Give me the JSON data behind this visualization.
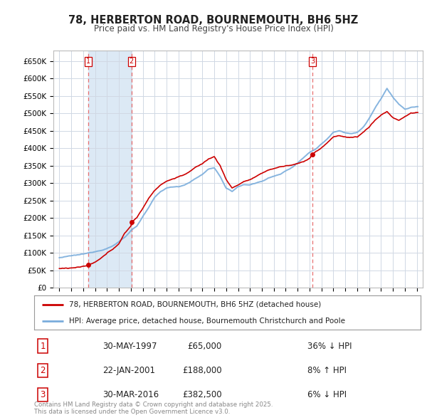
{
  "title": "78, HERBERTON ROAD, BOURNEMOUTH, BH6 5HZ",
  "subtitle": "Price paid vs. HM Land Registry's House Price Index (HPI)",
  "legend_line1": "78, HERBERTON ROAD, BOURNEMOUTH, BH6 5HZ (detached house)",
  "legend_line2": "HPI: Average price, detached house, Bournemouth Christchurch and Poole",
  "footnote": "Contains HM Land Registry data © Crown copyright and database right 2025.\nThis data is licensed under the Open Government Licence v3.0.",
  "transactions": [
    {
      "num": 1,
      "date": "30-MAY-1997",
      "price": 65000,
      "hpi_pct": "36% ↓ HPI"
    },
    {
      "num": 2,
      "date": "22-JAN-2001",
      "price": 188000,
      "hpi_pct": "8% ↑ HPI"
    },
    {
      "num": 3,
      "date": "30-MAR-2016",
      "price": 382500,
      "hpi_pct": "6% ↓ HPI"
    }
  ],
  "transaction_years": [
    1997.41,
    2001.06,
    2016.25
  ],
  "transaction_prices": [
    65000,
    188000,
    382500
  ],
  "red_color": "#cc0000",
  "blue_color": "#7aaddc",
  "blue_shade": "#dce9f5",
  "vline_color": "#e87070",
  "background_color": "#ffffff",
  "grid_color": "#d0d8e4",
  "ylim": [
    0,
    680000
  ],
  "xlim_start": 1994.5,
  "xlim_end": 2025.5,
  "yticks": [
    0,
    50000,
    100000,
    150000,
    200000,
    250000,
    300000,
    350000,
    400000,
    450000,
    500000,
    550000,
    600000,
    650000
  ],
  "ytick_labels": [
    "£0",
    "£50K",
    "£100K",
    "£150K",
    "£200K",
    "£250K",
    "£300K",
    "£350K",
    "£400K",
    "£450K",
    "£500K",
    "£550K",
    "£600K",
    "£650K"
  ]
}
